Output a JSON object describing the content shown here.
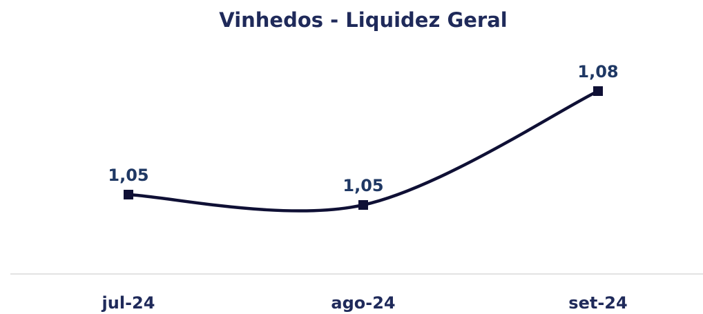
{
  "chart_data": {
    "type": "line",
    "title": "Vinhedos - Liquidez Geral",
    "categories": [
      "jul-24",
      "ago-24",
      "set-24"
    ],
    "series": [
      {
        "name": "Liquidez Geral",
        "color": "#0f1035",
        "values": [
          1.05,
          1.047,
          1.08
        ],
        "value_labels": [
          "1,05",
          "1,05",
          "1,08"
        ]
      }
    ],
    "ylim": [
      1.027,
      1.094
    ]
  }
}
